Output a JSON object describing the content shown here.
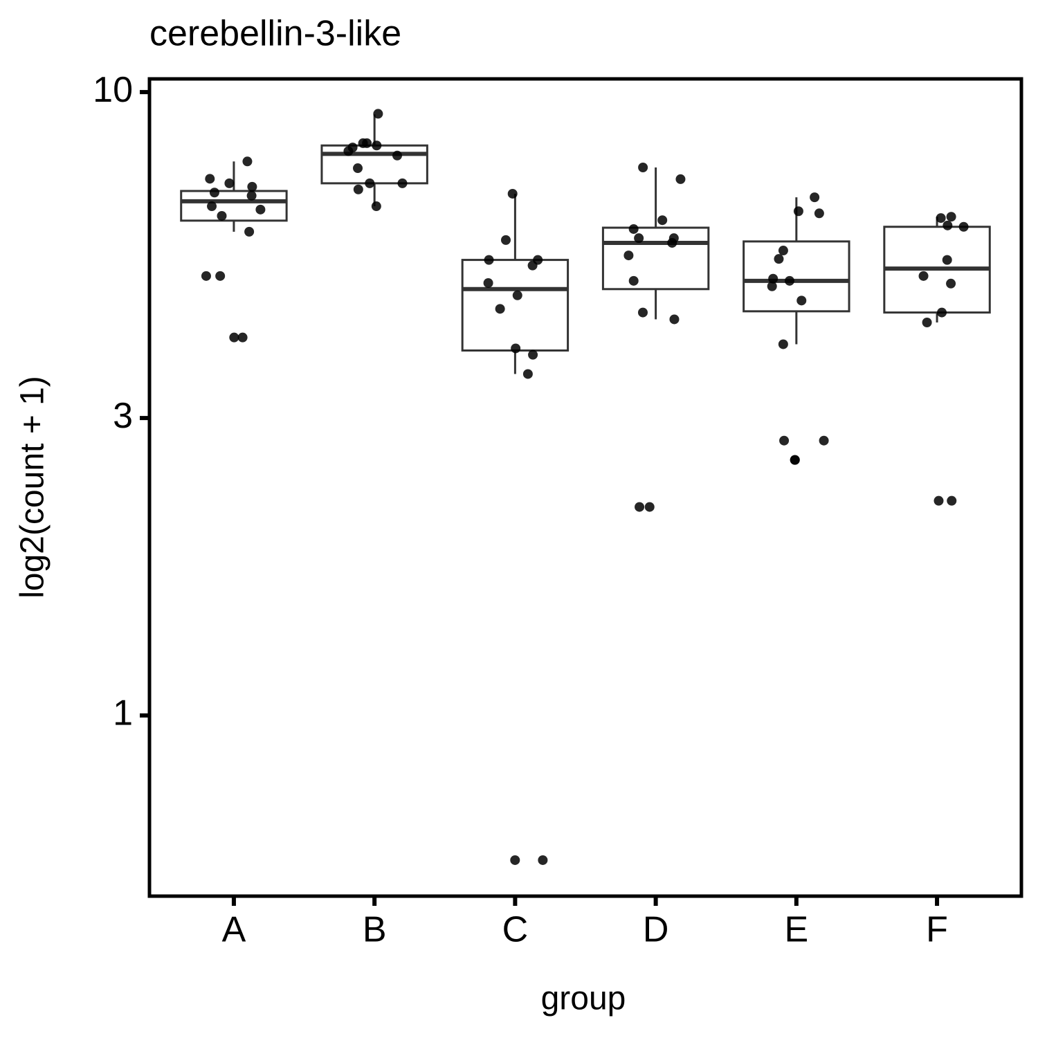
{
  "chart_data": {
    "type": "box",
    "title": "cerebellin-3-like",
    "x_label": "group",
    "y_label": "log2(count + 1)",
    "log_y": true,
    "ylim": [
      0.513,
      10.5
    ],
    "yticks": [
      1,
      3,
      10
    ],
    "categories": [
      "A",
      "B",
      "C",
      "D",
      "E",
      "F"
    ],
    "box_color": "#333333",
    "point_color": "#000000",
    "boxes": [
      {
        "whisker_low": 5.97,
        "q1": 6.22,
        "median": 6.68,
        "q3": 6.94,
        "whisker_high": 7.74
      },
      {
        "whisker_low": 6.56,
        "q1": 7.14,
        "median": 7.96,
        "q3": 8.21,
        "whisker_high": 9.21
      },
      {
        "whisker_low": 3.53,
        "q1": 3.85,
        "median": 4.83,
        "q3": 5.38,
        "whisker_high": 6.87
      },
      {
        "whisker_low": 4.32,
        "q1": 4.83,
        "median": 5.73,
        "q3": 6.06,
        "whisker_high": 7.57
      },
      {
        "whisker_low": 3.94,
        "q1": 4.45,
        "median": 4.98,
        "q3": 5.76,
        "whisker_high": 6.78
      },
      {
        "whisker_low": 4.27,
        "q1": 4.43,
        "median": 5.21,
        "q3": 6.08,
        "whisker_high": 6.31
      }
    ],
    "points": [
      [
        7.74,
        7.26,
        7.14,
        7.05,
        6.9,
        6.82,
        6.56,
        6.48,
        6.33,
        5.97,
        5.07,
        5.07,
        4.04,
        4.04
      ],
      [
        9.23,
        8.28,
        8.28,
        8.21,
        8.15,
        8.04,
        7.91,
        7.55,
        7.14,
        7.14,
        6.98,
        6.56
      ],
      [
        6.87,
        5.79,
        5.38,
        5.38,
        5.27,
        4.94,
        4.72,
        4.49,
        3.88,
        3.79,
        3.53,
        0.586,
        0.586
      ],
      [
        7.57,
        7.25,
        6.23,
        6.03,
        5.83,
        5.83,
        5.73,
        5.47,
        4.98,
        4.43,
        4.32,
        2.16,
        2.16
      ],
      [
        6.78,
        6.44,
        6.39,
        5.57,
        5.4,
        5.02,
        4.98,
        4.88,
        4.63,
        3.94,
        2.76,
        2.76,
        2.57,
        2.57
      ],
      [
        6.31,
        6.28,
        6.11,
        6.08,
        5.38,
        5.07,
        4.93,
        4.43,
        4.27,
        2.21,
        2.21
      ]
    ]
  }
}
